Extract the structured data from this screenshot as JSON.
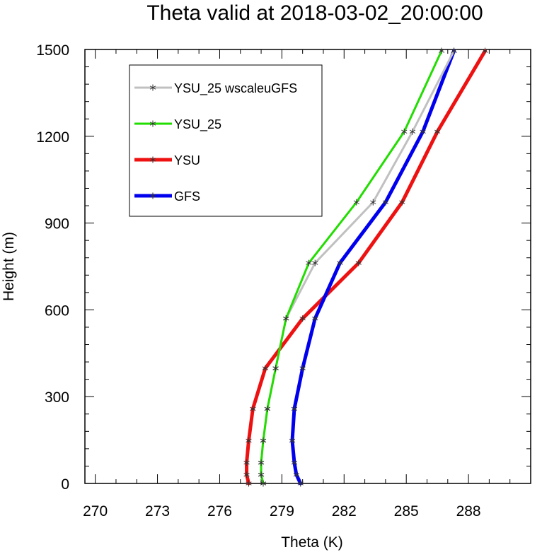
{
  "chart_data": {
    "type": "line",
    "title": "Theta valid at 2018-03-02_20:00:00",
    "xlabel": "Theta (K)",
    "ylabel": "Height (m)",
    "xlim": [
      269.5,
      291.0
    ],
    "ylim": [
      0,
      1500
    ],
    "xticks": [
      270,
      273,
      276,
      279,
      282,
      285,
      288
    ],
    "yticks": [
      0,
      300,
      600,
      900,
      1200,
      1500
    ],
    "grid": false,
    "legend": "top-left",
    "series": [
      {
        "name": "YSU_25 wscaleuGFS",
        "color": "#c0c0c0",
        "width": 3,
        "points": [
          {
            "x": 278.1,
            "y": 0
          },
          {
            "x": 278.0,
            "y": 30
          },
          {
            "x": 278.0,
            "y": 72
          },
          {
            "x": 278.1,
            "y": 148
          },
          {
            "x": 278.3,
            "y": 258
          },
          {
            "x": 278.7,
            "y": 398
          },
          {
            "x": 279.2,
            "y": 570
          },
          {
            "x": 280.6,
            "y": 762
          },
          {
            "x": 283.4,
            "y": 972
          },
          {
            "x": 285.3,
            "y": 1216
          },
          {
            "x": 287.3,
            "y": 1495
          }
        ]
      },
      {
        "name": "YSU_25",
        "color": "#22dd00",
        "width": 3,
        "points": [
          {
            "x": 278.1,
            "y": 0
          },
          {
            "x": 278.0,
            "y": 30
          },
          {
            "x": 278.0,
            "y": 72
          },
          {
            "x": 278.1,
            "y": 148
          },
          {
            "x": 278.3,
            "y": 258
          },
          {
            "x": 278.7,
            "y": 398
          },
          {
            "x": 279.2,
            "y": 570
          },
          {
            "x": 280.3,
            "y": 762
          },
          {
            "x": 282.6,
            "y": 972
          },
          {
            "x": 284.9,
            "y": 1216
          },
          {
            "x": 286.7,
            "y": 1495
          }
        ]
      },
      {
        "name": "YSU",
        "color": "#ee1111",
        "width": 5,
        "points": [
          {
            "x": 277.4,
            "y": 0
          },
          {
            "x": 277.3,
            "y": 30
          },
          {
            "x": 277.3,
            "y": 72
          },
          {
            "x": 277.4,
            "y": 148
          },
          {
            "x": 277.6,
            "y": 258
          },
          {
            "x": 278.2,
            "y": 398
          },
          {
            "x": 280.0,
            "y": 570
          },
          {
            "x": 282.7,
            "y": 762
          },
          {
            "x": 284.8,
            "y": 972
          },
          {
            "x": 286.5,
            "y": 1216
          },
          {
            "x": 288.8,
            "y": 1495
          }
        ]
      },
      {
        "name": "GFS",
        "color": "#0000ee",
        "width": 5,
        "points": [
          {
            "x": 279.9,
            "y": 0
          },
          {
            "x": 279.7,
            "y": 30
          },
          {
            "x": 279.6,
            "y": 72
          },
          {
            "x": 279.5,
            "y": 148
          },
          {
            "x": 279.6,
            "y": 258
          },
          {
            "x": 280.0,
            "y": 398
          },
          {
            "x": 280.6,
            "y": 570
          },
          {
            "x": 281.8,
            "y": 762
          },
          {
            "x": 284.0,
            "y": 972
          },
          {
            "x": 285.8,
            "y": 1216
          },
          {
            "x": 287.3,
            "y": 1495
          }
        ]
      }
    ]
  }
}
